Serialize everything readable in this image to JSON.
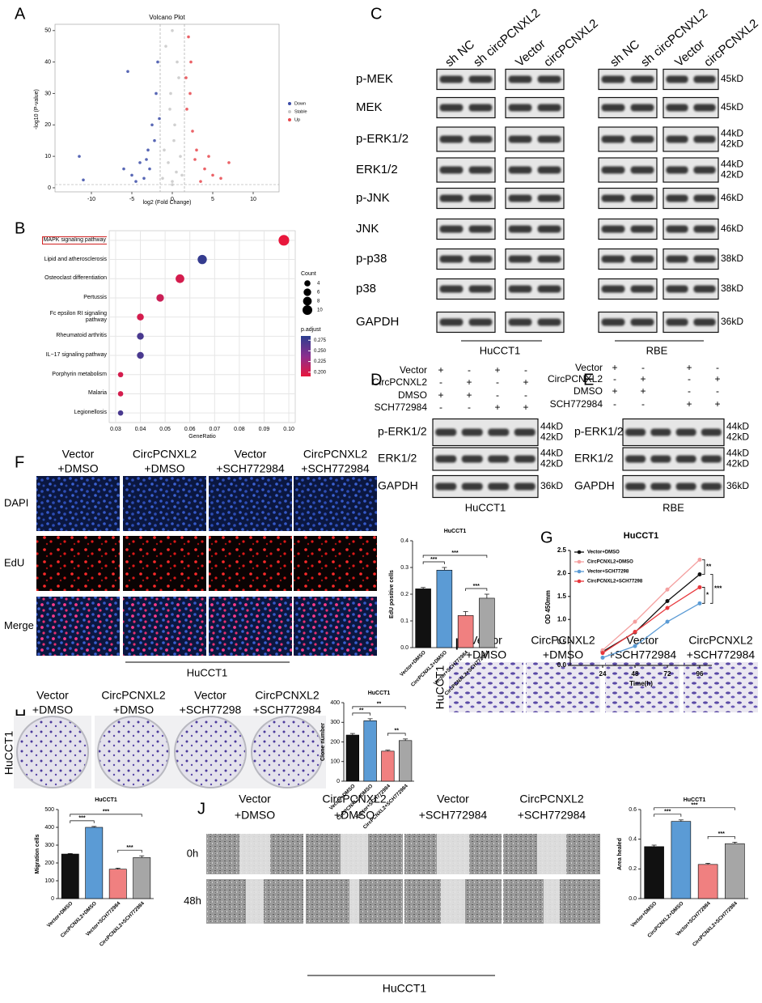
{
  "panel_labels": [
    "A",
    "B",
    "C",
    "D",
    "E",
    "F",
    "G",
    "H",
    "I",
    "J"
  ],
  "chart_data": [
    {
      "type": "scatter",
      "title": "Volcano Plot",
      "xlabel": "log2 (Fold Change)",
      "ylabel": "-log10 (P-value)",
      "xlim": [
        -14.5,
        13.2
      ],
      "ylim": [
        -1.3,
        52
      ],
      "xticks": [
        -10,
        -5,
        0,
        5,
        10
      ],
      "yticks": [
        0,
        10,
        20,
        30,
        40,
        50
      ],
      "series": [
        {
          "name": "Down",
          "color": "#3b4ca8",
          "x": [
            -11.5,
            -11,
            -5.5,
            -6,
            -5,
            -4,
            -3,
            -2.5,
            -2,
            -1.8,
            -2.2,
            -3.5,
            -4.5,
            -1.6,
            -2.8,
            -3.2
          ],
          "y": [
            10,
            2.5,
            37,
            6,
            4,
            8,
            12,
            20,
            30,
            40,
            15,
            3,
            2,
            22,
            6,
            9
          ]
        },
        {
          "name": "Stable",
          "color": "#c8c8c8",
          "x": [
            0,
            0.5,
            -0.5,
            0.2,
            -0.3,
            0.8,
            -0.8,
            0,
            1,
            -1,
            0.3,
            -0.2,
            0.6,
            1.2,
            -1.2,
            0
          ],
          "y": [
            2,
            5,
            8,
            15,
            25,
            35,
            45,
            1,
            10,
            12,
            20,
            30,
            40,
            4,
            3,
            50
          ]
        },
        {
          "name": "Up",
          "color": "#e8474c",
          "x": [
            2,
            2.2,
            1.8,
            2.5,
            3,
            4,
            5,
            6,
            7,
            2.8,
            3.5,
            1.7,
            2.3,
            4.5
          ],
          "y": [
            48,
            30,
            25,
            18,
            12,
            6,
            4,
            3,
            8,
            9,
            2,
            35,
            40,
            10
          ]
        }
      ]
    },
    {
      "type": "dot",
      "xlabel": "GeneRatio",
      "grid": true,
      "categories": [
        "MAPK signaling pathway",
        "Lipid and atherosclerosis",
        "Osteoclast differentiation",
        "Pertussis",
        "Fc epsilon RI signaling pathway",
        "Rheumatoid arthritis",
        "IL−17 signaling pathway",
        "Porphyrin metabolism",
        "Malaria",
        "Legionellosis"
      ],
      "values": [
        0.098,
        0.065,
        0.056,
        0.048,
        0.04,
        0.04,
        0.04,
        0.032,
        0.032,
        0.032
      ],
      "counts": [
        12,
        9,
        8,
        6,
        5,
        5,
        5,
        3,
        3,
        3
      ],
      "p_adjust": [
        0.19,
        0.28,
        0.2,
        0.205,
        0.2,
        0.27,
        0.27,
        0.2,
        0.2,
        0.27
      ],
      "xlim": [
        0.0274,
        0.1026
      ],
      "xticks": [
        0.03,
        0.04,
        0.05,
        0.06,
        0.07,
        0.08,
        0.09,
        {
          "value": 0.1,
          "label": "0.10"
        }
      ],
      "size_legend": {
        "title": "Count",
        "values": [
          4,
          6,
          8,
          10
        ]
      },
      "colorbar": {
        "title": "p.adjust",
        "lim": [
          0.19,
          0.285
        ],
        "colors": [
          "#e8173c",
          "#8a2f8e",
          "#2b3e8f"
        ],
        "ticks": [
          0.275,
          {
            "value": 0.25,
            "label": "0.250"
          },
          0.225,
          {
            "value": 0.2,
            "label": "0.200"
          }
        ]
      }
    },
    {
      "type": "bar",
      "title": "HuCCT1",
      "ylabel": "EdU positive cells",
      "categories": [
        "Vector+DMSO",
        "CircPCNXL2+DMSO",
        "Vector+SCH772984",
        "CircPCNXL2+SCH772984"
      ],
      "values": [
        0.22,
        0.29,
        0.12,
        0.185
      ],
      "errors": [
        0.005,
        0.01,
        0.015,
        0.015
      ],
      "colors": [
        "#111111",
        "#5b9bd5",
        "#f08080",
        "#a6a6a6"
      ],
      "ylim": [
        0,
        0.4
      ],
      "yticks": [
        {
          "value": 0,
          "label": "0.0"
        },
        0.1,
        0.2,
        0.3,
        0.4
      ],
      "significance": [
        "***",
        "***",
        "***"
      ]
    },
    {
      "type": "line",
      "title": "HuCCT1",
      "xlabel": "Time(h)",
      "ylabel": "OD 450mm",
      "x": [
        24,
        48,
        72,
        96
      ],
      "xlim": [
        0,
        105
      ],
      "xticks": [
        24,
        48,
        72,
        96
      ],
      "ylim": [
        0,
        2.5
      ],
      "yticks": [
        {
          "value": 0,
          "label": "0.0"
        },
        0.5,
        {
          "value": 1,
          "label": "1.0"
        },
        1.5,
        {
          "value": 2,
          "label": "2.0"
        },
        2.5
      ],
      "series": [
        {
          "name": "Vector+DMSO",
          "color": "#111111",
          "values": [
            0.3,
            0.72,
            1.4,
            1.98
          ]
        },
        {
          "name": "CircPCNXL2+DMSO",
          "color": "#f4a0a0",
          "values": [
            0.33,
            0.95,
            1.65,
            2.3
          ]
        },
        {
          "name": "Vector+SCH77298",
          "color": "#5b9bd5",
          "values": [
            0.17,
            0.42,
            0.95,
            1.35
          ]
        },
        {
          "name": "CircPCNXL2+SCH77298",
          "color": "#e8383d",
          "values": [
            0.27,
            0.73,
            1.25,
            1.7
          ]
        }
      ],
      "significance": [
        "**",
        "*",
        "***"
      ]
    },
    {
      "type": "bar",
      "title": "HuCCT1",
      "ylabel": "Clone number",
      "categories": [
        "Vector+DMSO",
        "CircPCNXL2+DMSO",
        "Vector+SCH772984",
        "CircPCNXL2+SCH772984"
      ],
      "values": [
        235,
        308,
        153,
        207
      ],
      "errors": [
        8,
        10,
        5,
        8
      ],
      "colors": [
        "#111111",
        "#5b9bd5",
        "#f08080",
        "#a6a6a6"
      ],
      "ylim": [
        0,
        400
      ],
      "yticks": [
        0,
        100,
        200,
        300,
        400
      ],
      "significance": [
        "**",
        "**",
        "**"
      ]
    },
    {
      "type": "bar",
      "title": "HuCCT1",
      "ylabel": "Migration cells",
      "categories": [
        "Vector+DMSO",
        "CircPCNXL2+DMSO",
        "Vector+SCH772984",
        "CircPCNXL2+SCH772984"
      ],
      "values": [
        250,
        400,
        165,
        230
      ],
      "errors": [
        3,
        5,
        6,
        10
      ],
      "colors": [
        "#111111",
        "#5b9bd5",
        "#f08080",
        "#a6a6a6"
      ],
      "ylim": [
        0,
        500
      ],
      "yticks": [
        0,
        100,
        200,
        300,
        400,
        500
      ],
      "significance": [
        "***",
        "***",
        "***"
      ]
    },
    {
      "type": "bar",
      "title": "HuCCT1",
      "ylabel": "Area healed",
      "categories": [
        "Vector+DMSO",
        "CircPCNXL2+DMSO",
        "Vector+SCH772984",
        "CircPCNXL2+SCH772984"
      ],
      "values": [
        0.35,
        0.52,
        0.23,
        0.37
      ],
      "errors": [
        0.01,
        0.01,
        0.008,
        0.01
      ],
      "colors": [
        "#111111",
        "#5b9bd5",
        "#f08080",
        "#a6a6a6"
      ],
      "ylim": [
        0,
        0.6
      ],
      "yticks": [
        {
          "value": 0,
          "label": "0.0"
        },
        0.2,
        0.4,
        0.6
      ],
      "significance": [
        "***",
        "***",
        "***"
      ]
    }
  ],
  "panel_c": {
    "columns": [
      "sh NC",
      "sh circPCNXL2",
      "Vector",
      "circPCNXL2",
      "sh NC",
      "sh circPCNXL2",
      "Vector",
      "circPCNXL2"
    ],
    "rows": [
      {
        "name": "p-MEK",
        "kd": [
          "45kD"
        ]
      },
      {
        "name": "MEK",
        "kd": [
          "45kD"
        ]
      },
      {
        "name": "p-ERK1/2",
        "kd": [
          "44kD",
          "42kD"
        ]
      },
      {
        "name": "ERK1/2",
        "kd": [
          "44kD",
          "42kD"
        ]
      },
      {
        "name": "p-JNK",
        "kd": [
          "46kD"
        ]
      },
      {
        "name": "JNK",
        "kd": [
          "46kD"
        ]
      },
      {
        "name": "p-p38",
        "kd": [
          "38kD"
        ]
      },
      {
        "name": "p38",
        "kd": [
          "38kD"
        ]
      },
      {
        "name": "GAPDH",
        "kd": [
          "36kD"
        ]
      }
    ],
    "cell_lines": [
      "HuCCT1",
      "RBE"
    ]
  },
  "panel_d": {
    "conditions": [
      {
        "name": "Vector",
        "marks": [
          "+",
          "-",
          "+",
          "-"
        ]
      },
      {
        "name": "CircPCNXL2",
        "marks": [
          "-",
          "+",
          "-",
          "+"
        ]
      },
      {
        "name": "DMSO",
        "marks": [
          "+",
          "+",
          "-",
          "-"
        ]
      },
      {
        "name": "SCH772984",
        "marks": [
          "-",
          "-",
          "+",
          "+"
        ]
      }
    ],
    "rows": [
      {
        "name": "p-ERK1/2",
        "kd": [
          "44kD",
          "42kD"
        ]
      },
      {
        "name": "ERK1/2",
        "kd": [
          "44kD",
          "42kD"
        ]
      },
      {
        "name": "GAPDH",
        "kd": [
          "36kD"
        ]
      }
    ],
    "cell_line": "HuCCT1"
  },
  "panel_e": {
    "conditions": [
      {
        "name": "Vector",
        "marks": [
          "+",
          "-",
          "+",
          "-"
        ]
      },
      {
        "name": "CircPCNXL2",
        "marks": [
          "-",
          "+",
          "-",
          "+"
        ]
      },
      {
        "name": "DMSO",
        "marks": [
          "+",
          "+",
          "-",
          "-"
        ]
      },
      {
        "name": "SCH772984",
        "marks": [
          "-",
          "-",
          "+",
          "+"
        ]
      }
    ],
    "rows": [
      {
        "name": "p-ERK1/2",
        "kd": [
          "44kD",
          "42kD"
        ]
      },
      {
        "name": "ERK1/2",
        "kd": [
          "44kD",
          "42kD"
        ]
      },
      {
        "name": "GAPDH",
        "kd": [
          "36kD"
        ]
      }
    ],
    "cell_line": "RBE"
  },
  "panel_f": {
    "columns": [
      [
        "Vector",
        "+DMSO"
      ],
      [
        "CircPCNXL2",
        "+DMSO"
      ],
      [
        "Vector",
        "+SCH772984"
      ],
      [
        "CircPCNXL2",
        "+SCH772984"
      ]
    ],
    "rows": [
      "DAPI",
      "EdU",
      "Merge"
    ],
    "cell_line": "HuCCT1"
  },
  "panel_h": {
    "columns": [
      [
        "Vector",
        "+DMSO"
      ],
      [
        "CircPCNXL2",
        "+DMSO"
      ],
      [
        "Vector",
        "+SCH77298"
      ],
      [
        "CircPCNXL2",
        "+SCH772984"
      ]
    ],
    "cell_line": "HuCCT1"
  },
  "panel_i": {
    "columns": [
      [
        "Vector",
        "+DMSO"
      ],
      [
        "CircPCNXL2",
        "+DMSO"
      ],
      [
        "Vector",
        "+SCH772984"
      ],
      [
        "CircPCNXL2",
        "+SCH772984"
      ]
    ],
    "cell_line": "HuCCT1"
  },
  "panel_j": {
    "columns": [
      [
        "Vector",
        "+DMSO"
      ],
      [
        "CircPCNXL2",
        "+DMSO"
      ],
      [
        "Vector",
        "+SCH772984"
      ],
      [
        "CircPCNXL2",
        "+SCH772984"
      ]
    ],
    "rows": [
      "0h",
      "48h"
    ],
    "cell_line": "HuCCT1"
  }
}
